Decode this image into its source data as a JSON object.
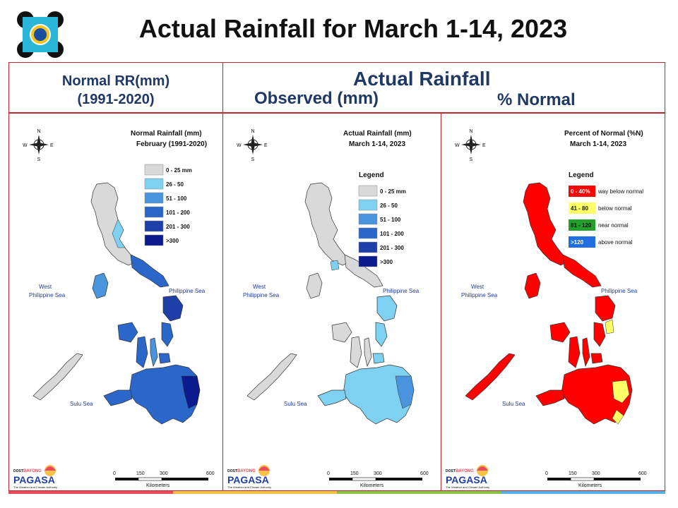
{
  "title": "Actual Rainfall for March 1-14, 2023",
  "header": {
    "normal_line1": "Normal RR(mm)",
    "normal_line2": "(1991-2020)",
    "actual": "Actual Rainfall",
    "observed": "Observed (mm)",
    "percent": "% Normal"
  },
  "panels": [
    {
      "map_title_1": "Normal Rainfall (mm)",
      "map_title_2": "February (1991-2020)",
      "legend_title": "",
      "legend": [
        {
          "label": "0 - 25 mm",
          "color": "#d9d9d9"
        },
        {
          "label": "26 - 50",
          "color": "#7fd1f2"
        },
        {
          "label": "51 - 100",
          "color": "#4a94de"
        },
        {
          "label": "101 - 200",
          "color": "#2a67c9"
        },
        {
          "label": "201 - 300",
          "color": "#1f3fa8"
        },
        {
          "label": ">300",
          "color": "#0b1a8c"
        }
      ],
      "sea_west_1": "West",
      "sea_west_2": "Philippine Sea",
      "sea_east": "Philippine Sea",
      "sea_sulu": "Sulu Sea"
    },
    {
      "map_title_1": "Actual Rainfall (mm)",
      "map_title_2": "March 1-14, 2023",
      "legend_title": "Legend",
      "legend": [
        {
          "label": "0 - 25 mm",
          "color": "#d9d9d9"
        },
        {
          "label": "26 - 50",
          "color": "#7fd1f2"
        },
        {
          "label": "51 - 100",
          "color": "#4a94de"
        },
        {
          "label": "101 - 200",
          "color": "#2a67c9"
        },
        {
          "label": "201 - 300",
          "color": "#1f3fa8"
        },
        {
          "label": ">300",
          "color": "#0b1a8c"
        }
      ],
      "sea_west_1": "West",
      "sea_west_2": "Philippine Sea",
      "sea_east": "Philippine Sea",
      "sea_sulu": "Sulu Sea"
    },
    {
      "map_title_1": "Percent of Normal (%N)",
      "map_title_2": "March 1-14, 2023",
      "legend_title": "Legend",
      "legend": [
        {
          "label": "0 - 40%",
          "desc": "way below normal",
          "color": "#ff0000"
        },
        {
          "label": "41 - 80",
          "desc": "below normal",
          "color": "#ffff66"
        },
        {
          "label": "81 - 120",
          "desc": "near normal",
          "color": "#22a02a"
        },
        {
          "label": ">120",
          "desc": "above normal",
          "color": "#1f6fe0"
        }
      ],
      "sea_west_1": "West",
      "sea_west_2": "Philippine Sea",
      "sea_east": "Philippine Sea",
      "sea_sulu": "Sulu Sea"
    }
  ],
  "scale": {
    "ticks": [
      "0",
      "150",
      "300",
      "600"
    ],
    "unit": "Kilometers"
  },
  "compass": {
    "n": "N",
    "s": "S",
    "e": "E",
    "w": "W"
  },
  "logo": {
    "top": "DOST",
    "brand": "PAGASA",
    "tag1": "BAYONG",
    "tag2": "The Weather and Climate Authority"
  },
  "bar_colors": [
    "#e94b5b",
    "#f6c24a",
    "#8bc34a",
    "#5ab0e6"
  ]
}
